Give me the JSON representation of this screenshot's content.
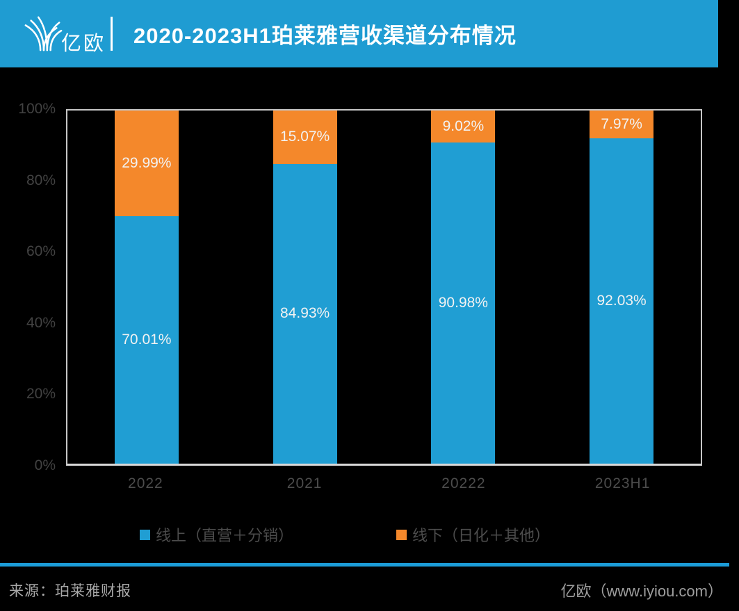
{
  "header": {
    "logo": {
      "brand_text": "亿欧",
      "icon": "equalocean-logo"
    },
    "title": "2020-2023H1珀莱雅营收渠道分布情况"
  },
  "colors": {
    "background": "#000000",
    "header_bg": "#1F9CD2",
    "online_blue": "#209ED3",
    "offline_orange": "#F4882B",
    "footer_accent": "#1B9CD8"
  },
  "chart_data": {
    "type": "bar",
    "subtype": "stacked-100",
    "title": "2020-2023H1珀莱雅营收渠道分布情况",
    "categories": [
      "2022",
      "2021",
      "20222",
      "2023H1"
    ],
    "series": [
      {
        "name": "线上（直营＋分销）",
        "color": "#209ED3",
        "values": [
          70.01,
          84.93,
          90.98,
          92.03
        ],
        "labels": [
          "70.01%",
          "84.93%",
          "90.98%",
          "92.03%"
        ]
      },
      {
        "name": "线下（日化＋其他）",
        "color": "#F4882B",
        "values": [
          29.99,
          15.07,
          9.02,
          7.97
        ],
        "labels": [
          "29.99%",
          "15.07%",
          "9.02%",
          "7.97%"
        ]
      }
    ],
    "y_ticks": [
      "100%",
      "80%",
      "60%",
      "40%",
      "20%",
      "0%"
    ],
    "ylim": [
      0,
      100
    ],
    "grid": false,
    "legend_position": "bottom"
  },
  "footer": {
    "source": "来源：珀莱雅财报",
    "brand": "亿欧（www.iyiou.com）"
  }
}
